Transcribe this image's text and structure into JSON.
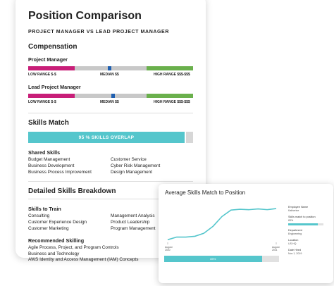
{
  "main": {
    "title": "Position Comparison",
    "subtitle": "PROJECT MANAGER VS LEAD PROJECT MANAGER",
    "compensation": {
      "heading": "Compensation",
      "roles": [
        {
          "name": "Project Manager",
          "median_position": 0.575
        },
        {
          "name": "Lead Project Manager",
          "median_position": 0.6
        }
      ],
      "labels": {
        "low": "LOW RANGE $-$",
        "median": "MEDIAN $$",
        "high": "HIGH RANGE $$$-$$$"
      },
      "colors": {
        "low": "#c81e78",
        "mid": "#c8c8c8",
        "median": "#1f5fb0",
        "high": "#6ab04c"
      }
    },
    "skills_match": {
      "heading": "Skills Match",
      "overlap_label": "95 % SKILLS OVERLAP",
      "overlap_fraction": 0.95,
      "shared_heading": "Shared Skills",
      "shared_left": [
        "Budget Management",
        "Business Development",
        "Business Process Improvement"
      ],
      "shared_right": [
        "Customer Service",
        "Cyber Risk Management",
        "Design Management"
      ]
    },
    "breakdown": {
      "heading": "Detailed Skills Breakdown",
      "train_heading": "Skills to Train",
      "train_left": [
        "Consulting",
        "Customer Experience Design",
        "Customer Marketing"
      ],
      "train_right": [
        "Management Analysis",
        "Product Leadership",
        "Program Management"
      ],
      "recommended_heading": "Recommended Skilling",
      "recommended": [
        "Agile Process, Project, and Program Controls",
        "Business and Technology",
        "AWS Identity and Access Management (IAM) Concepts"
      ]
    }
  },
  "chart_card": {
    "title": "Average Skills Match to Position",
    "percent_label": "85%",
    "percent_fraction": 0.85,
    "x_start": [
      "August",
      "2020"
    ],
    "x_end": [
      "August",
      "2021"
    ],
    "info": [
      {
        "key": "Employee Name",
        "value": "Katherine"
      },
      {
        "key": "Skills match to position",
        "value": "83%",
        "bar": 0.83
      },
      {
        "key": "Department",
        "value": "Engineering"
      },
      {
        "key": "Location",
        "value": "US HQ"
      },
      {
        "key": "Date Hired",
        "value": "Nov 1, 2019"
      }
    ]
  },
  "chart_data": {
    "type": "line",
    "title": "Average Skills Match to Position",
    "xlabel": "",
    "ylabel": "",
    "x": [
      "August 2020",
      "",
      "",
      "",
      "",
      "",
      "",
      "",
      "",
      "",
      "",
      "",
      "August 2021"
    ],
    "series": [
      {
        "values": [
          5,
          12,
          12,
          14,
          22,
          40,
          66,
          83,
          85,
          84,
          86,
          84,
          87
        ]
      }
    ],
    "ylim": [
      0,
      100
    ],
    "grid": false,
    "color": "#55c6cc"
  }
}
